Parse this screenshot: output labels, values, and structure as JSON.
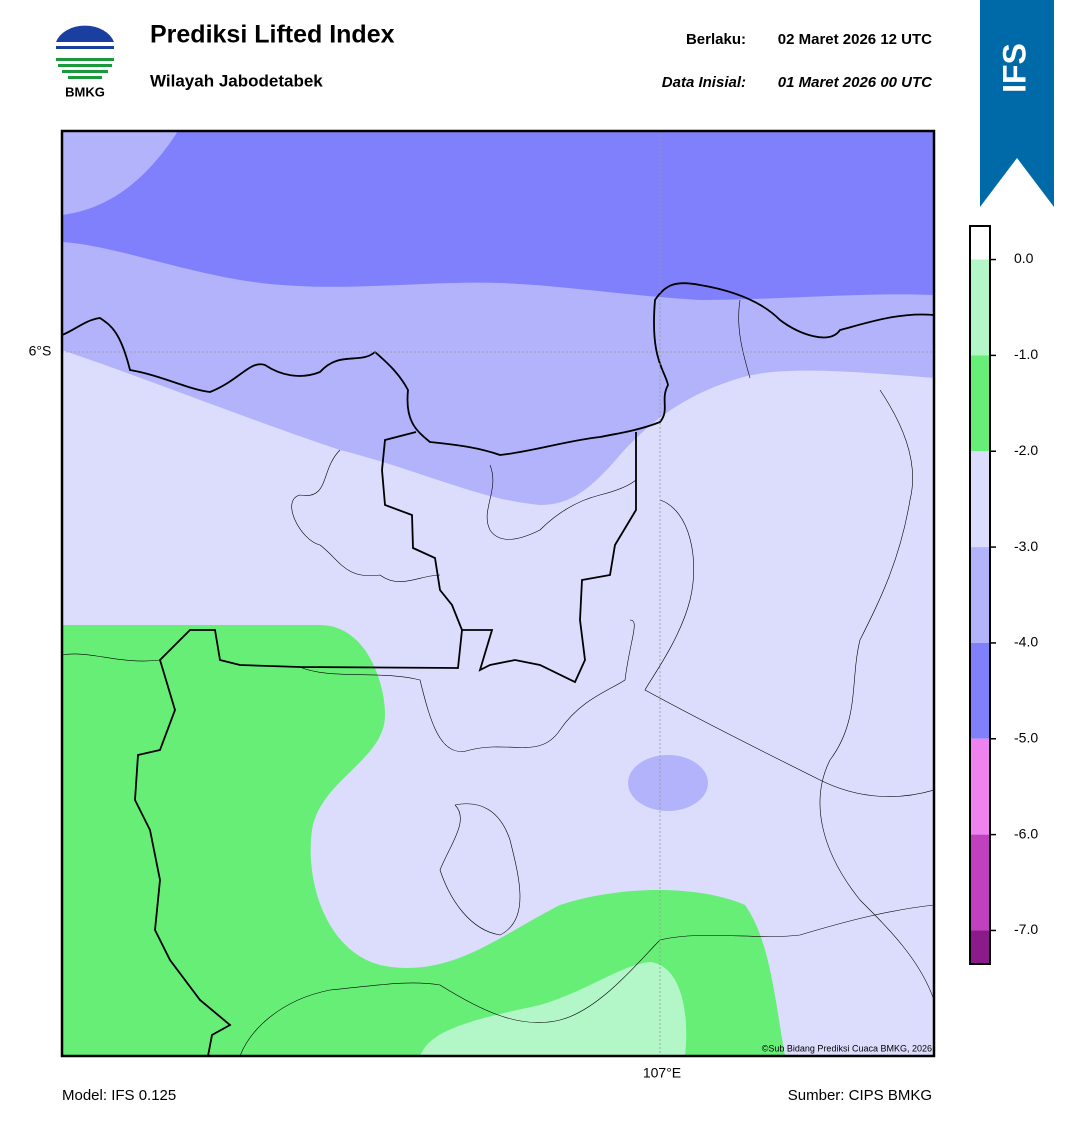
{
  "header": {
    "logo_text": "BMKG",
    "title": "Prediksi Lifted Index",
    "subtitle": "Wilayah Jabodetabek",
    "valid_label": "Berlaku:",
    "valid_time": "02 Maret 2026 12 UTC",
    "init_label": "Data Inisial:",
    "init_time": "01 Maret 2026 00 UTC",
    "badge": "IFS"
  },
  "map": {
    "lat_label": "6°S",
    "lon_label": "107°E",
    "credit": "©Sub Bidang Prediksi Cuaca BMKG, 2026"
  },
  "colorbar": {
    "lim": [
      -7.35,
      0.35
    ],
    "levels": [
      0.35,
      0,
      -1,
      -2,
      -3,
      -4,
      -5,
      -6,
      -7,
      -7.35
    ],
    "colors": [
      "#ffffff",
      "#b3f7c8",
      "#66ee77",
      "#dcdcfc",
      "#b3b3fc",
      "#8080fc",
      "#ee82ee",
      "#c040c0",
      "#8b1a8b"
    ],
    "ticks": [
      {
        "value": 0,
        "label": "0.0"
      },
      {
        "value": -1,
        "label": "-1.0"
      },
      {
        "value": -2,
        "label": "-2.0"
      },
      {
        "value": -3,
        "label": "-3.0"
      },
      {
        "value": -4,
        "label": "-4.0"
      },
      {
        "value": -5,
        "label": "-5.0"
      },
      {
        "value": -6,
        "label": "-6.0"
      },
      {
        "value": -7,
        "label": "-7.0"
      }
    ]
  },
  "footer": {
    "model": "Model: IFS 0.125",
    "source": "Sumber: CIPS BMKG"
  }
}
